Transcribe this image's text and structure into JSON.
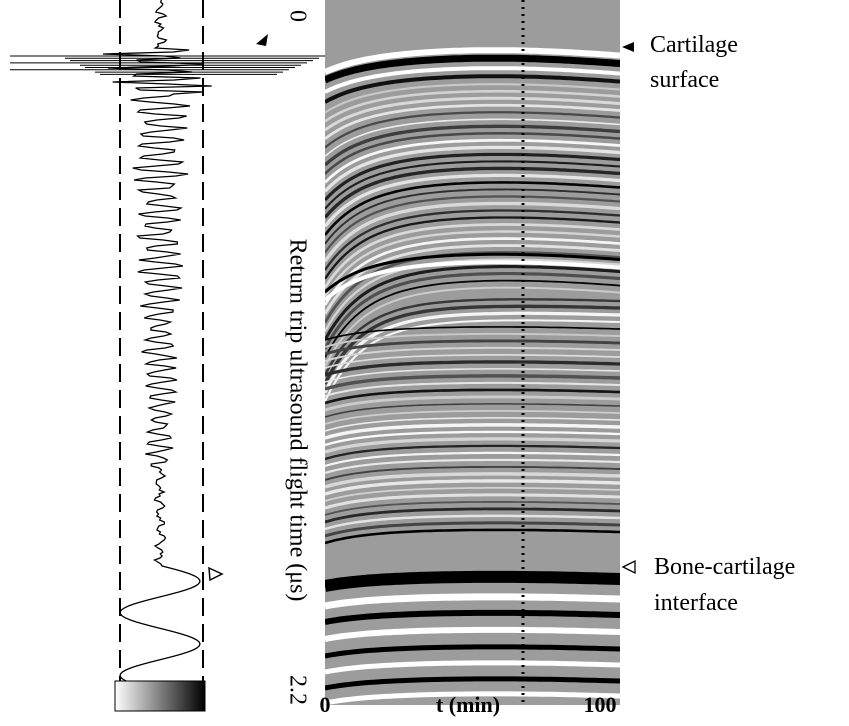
{
  "y_axis": {
    "title": "Return trip ultrasound flight time (μs)",
    "top_label": "0",
    "bottom_label": "2.2"
  },
  "x_axis": {
    "title": "t (min)",
    "start_label": "0",
    "end_label": "100"
  },
  "annotations": [
    {
      "lines": [
        "Cartilage",
        "surface"
      ]
    },
    {
      "lines": [
        "Bone-cartilage",
        "interface"
      ]
    }
  ]
}
